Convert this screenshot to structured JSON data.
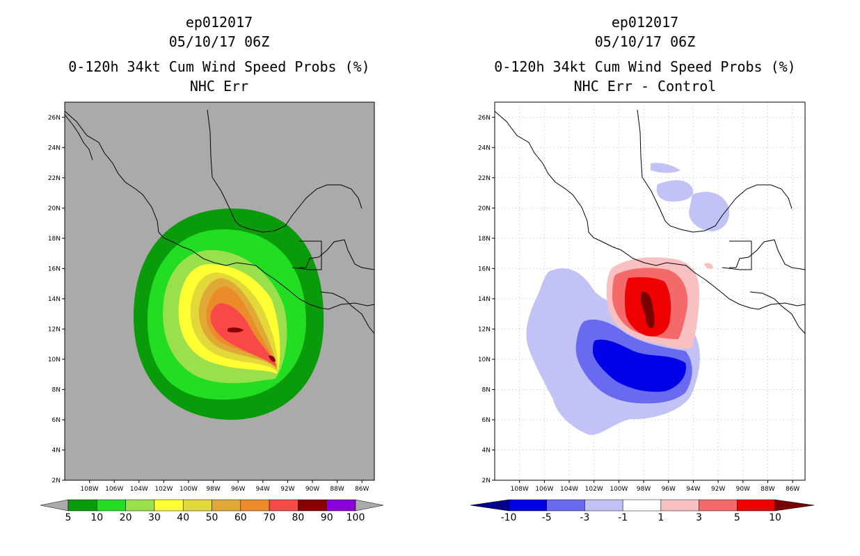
{
  "left": {
    "storm": "ep012017",
    "datetime": "05/10/17 06Z",
    "product": "0-120h 34kt Cum Wind Speed Probs (%)",
    "subtitle": "NHC Err",
    "legend_labels": [
      "5",
      "10",
      "20",
      "30",
      "40",
      "50",
      "60",
      "70",
      "80",
      "90",
      "100"
    ],
    "legend_colors": [
      "#0a9b0a",
      "#22dd22",
      "#99e04c",
      "#ffff33",
      "#e2d83a",
      "#e0a935",
      "#ec8b2a",
      "#f84848",
      "#8a0000",
      "#8a00dc"
    ],
    "background_color": "#aaaaaa"
  },
  "right": {
    "storm": "ep012017",
    "datetime": "05/10/17 06Z",
    "product": "0-120h 34kt Cum Wind Speed Probs (%)",
    "subtitle": "NHC Err - Control",
    "legend_labels": [
      "-10",
      "-5",
      "-3",
      "-1",
      "1",
      "3",
      "5",
      "10"
    ],
    "legend_colors": [
      "#0000e6",
      "#6a6af0",
      "#c2c2f6",
      "#ffffff",
      "#f8c0c0",
      "#f46a6a",
      "#ee0000"
    ],
    "background_color": "#ffffff"
  },
  "axes": {
    "lon_labels": [
      "108W",
      "106W",
      "104W",
      "102W",
      "100W",
      "98W",
      "96W",
      "94W",
      "92W",
      "90W",
      "88W",
      "86W"
    ],
    "lat_labels": [
      "26N",
      "24N",
      "22N",
      "20N",
      "18N",
      "16N",
      "14N",
      "12N",
      "10N",
      "8N",
      "6N",
      "4N",
      "2N"
    ],
    "lon_range": [
      -110,
      -85
    ],
    "lat_range": [
      2,
      27
    ]
  },
  "colors": {
    "extreme_low": "#00008a",
    "extreme_high": "#7a0000",
    "below_min": "#aaaaaa",
    "above_max": "#aaaaaa"
  }
}
